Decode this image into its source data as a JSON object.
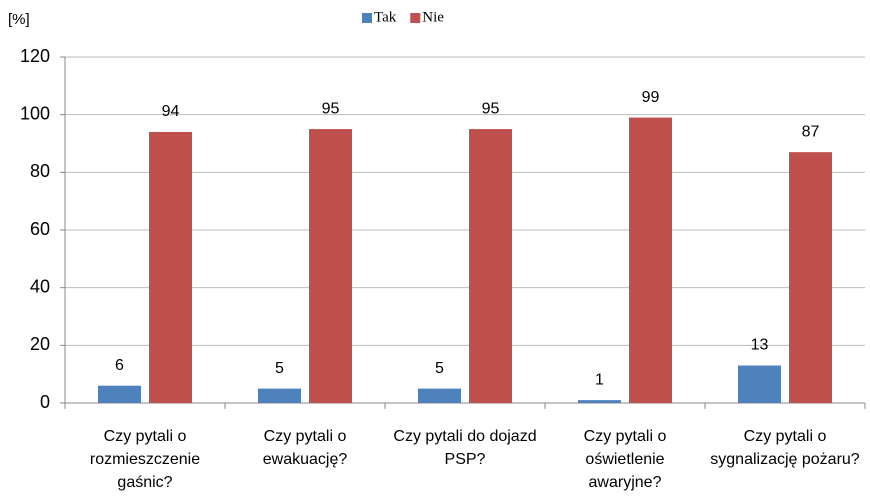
{
  "chart_data": {
    "type": "bar",
    "y_label": "[%]",
    "categories": [
      "Czy pytali o rozmieszczenie gaśnic?",
      "Czy pytali o ewakuację?",
      "Czy pytali do dojazd PSP?",
      "Czy pytali o oświetlenie awaryjne?",
      "Czy pytali o sygnalizację pożaru?"
    ],
    "series": [
      {
        "name": "Tak",
        "color": "#4f81bd",
        "values": [
          6,
          5,
          5,
          1,
          13
        ]
      },
      {
        "name": "Nie",
        "color": "#c0504d",
        "values": [
          94,
          95,
          95,
          99,
          87
        ]
      }
    ],
    "ylim": [
      0,
      120
    ],
    "yticks": [
      0,
      20,
      40,
      60,
      80,
      100,
      120
    ],
    "grid": true,
    "legend": "top"
  }
}
